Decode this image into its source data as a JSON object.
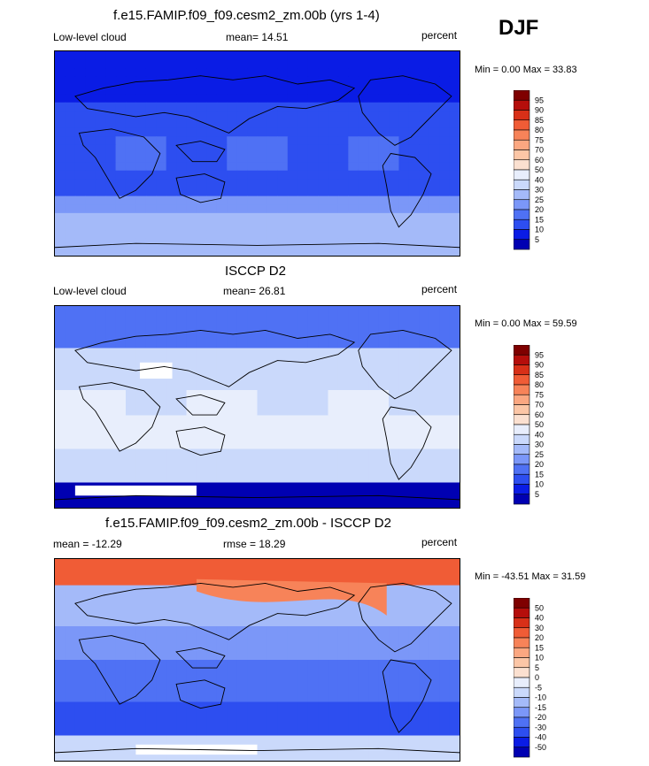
{
  "season": "DJF",
  "colors": {
    "scale_a": [
      "#00007f",
      "#0000b2",
      "#0a1ce5",
      "#2d4ef0",
      "#4f71f4",
      "#7b97f8",
      "#a4baf9",
      "#cad9fb",
      "#e8eefc",
      "#fbe0d0",
      "#fcc6a6",
      "#fba781",
      "#f78359",
      "#f05c36",
      "#d83018",
      "#b50e0b",
      "#7f0000"
    ],
    "scale_b": [
      "#00007f",
      "#0000b2",
      "#0a1ce5",
      "#2d4ef0",
      "#4f71f4",
      "#7b97f8",
      "#a4baf9",
      "#cad9fb",
      "#e8eefc",
      "#fbe0d0",
      "#fcc6a6",
      "#fba781",
      "#f78359",
      "#f05c36",
      "#d83018",
      "#b50e0b",
      "#7f0000"
    ]
  },
  "panels": [
    {
      "title": "f.e15.FAMIP.f09_f09.cesm2_zm.00b (yrs 1-4)",
      "left_label": "Low-level cloud",
      "center_label": "mean=  14.51",
      "right_label": "percent",
      "minmax": "Min =   0.00 Max =  33.83",
      "map_style": "model"
    },
    {
      "title": "ISCCP D2",
      "left_label": "Low-level cloud",
      "center_label": "mean=  26.81",
      "right_label": "percent",
      "minmax": "Min =   0.00 Max =  59.59",
      "map_style": "obs"
    },
    {
      "title": "f.e15.FAMIP.f09_f09.cesm2_zm.00b - ISCCP D2",
      "left_label": "mean = -12.29",
      "center_label": "rmse =  18.29",
      "right_label": "percent",
      "minmax": "Min = -43.51 Max =  31.59",
      "map_style": "diff"
    }
  ],
  "chart_data": [
    {
      "type": "heatmap",
      "title": "f.e15.FAMIP.f09_f09.cesm2_zm.00b (yrs 1-4)",
      "variable": "Low-level cloud",
      "units": "percent",
      "mean": 14.51,
      "min": 0.0,
      "max": 33.83,
      "colorbar_levels": [
        5,
        10,
        15,
        20,
        25,
        30,
        40,
        50,
        60,
        70,
        75,
        80,
        85,
        90,
        95
      ]
    },
    {
      "type": "heatmap",
      "title": "ISCCP D2",
      "variable": "Low-level cloud",
      "units": "percent",
      "mean": 26.81,
      "min": 0.0,
      "max": 59.59,
      "colorbar_levels": [
        5,
        10,
        15,
        20,
        25,
        30,
        40,
        50,
        60,
        70,
        75,
        80,
        85,
        90,
        95
      ]
    },
    {
      "type": "heatmap",
      "title": "f.e15.FAMIP.f09_f09.cesm2_zm.00b - ISCCP D2",
      "units": "percent",
      "mean": -12.29,
      "rmse": 18.29,
      "min": -43.51,
      "max": 31.59,
      "colorbar_levels": [
        -50,
        -40,
        -30,
        -20,
        -15,
        -10,
        -5,
        0,
        5,
        10,
        15,
        20,
        30,
        40,
        50
      ]
    }
  ]
}
